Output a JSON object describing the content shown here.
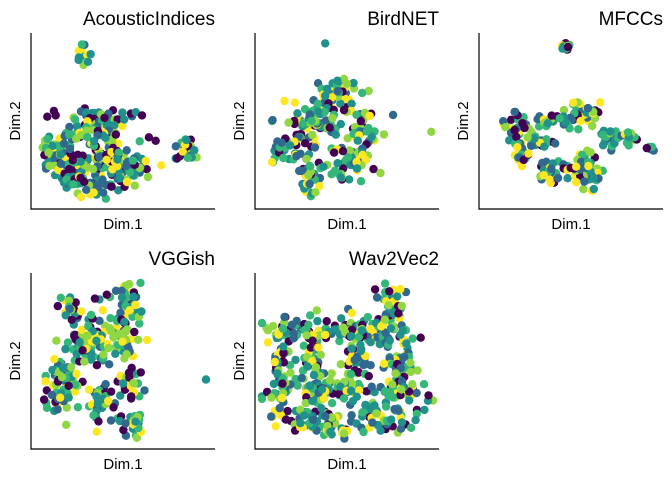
{
  "colors": {
    "palette": "viridis",
    "viridis": [
      "#440154",
      "#31688e",
      "#21918c",
      "#35b779",
      "#90d743",
      "#fde725"
    ]
  },
  "chart_data": [
    {
      "type": "scatter",
      "title": "AcousticIndices",
      "xlabel": "Dim.1",
      "ylabel": "Dim.2",
      "axis_ticks": false,
      "grid": false,
      "color_scale": "viridis",
      "clusters": [
        {
          "cx": 0.26,
          "cy": 0.9,
          "sx": 0.02,
          "sy": 0.03,
          "n": 12
        },
        {
          "cx": 0.35,
          "cy": 0.5,
          "sx": 0.09,
          "sy": 0.04,
          "n": 60
        },
        {
          "cx": 0.1,
          "cy": 0.3,
          "sx": 0.05,
          "sy": 0.05,
          "n": 45
        },
        {
          "cx": 0.33,
          "cy": 0.28,
          "sx": 0.13,
          "sy": 0.1,
          "n": 140
        },
        {
          "cx": 0.48,
          "cy": 0.22,
          "sx": 0.06,
          "sy": 0.07,
          "n": 40
        },
        {
          "cx": 0.2,
          "cy": 0.12,
          "sx": 0.06,
          "sy": 0.05,
          "n": 30
        },
        {
          "cx": 0.86,
          "cy": 0.32,
          "sx": 0.03,
          "sy": 0.05,
          "n": 25
        }
      ]
    },
    {
      "type": "scatter",
      "title": "BirdNET",
      "xlabel": "Dim.1",
      "ylabel": "Dim.2",
      "axis_ticks": false,
      "grid": false,
      "color_scale": "viridis",
      "clusters": [
        {
          "cx": 0.36,
          "cy": 0.95,
          "sx": 0.01,
          "sy": 0.01,
          "n": 1
        },
        {
          "cx": 0.45,
          "cy": 0.68,
          "sx": 0.07,
          "sy": 0.05,
          "n": 45
        },
        {
          "cx": 0.3,
          "cy": 0.48,
          "sx": 0.1,
          "sy": 0.08,
          "n": 80
        },
        {
          "cx": 0.58,
          "cy": 0.45,
          "sx": 0.06,
          "sy": 0.05,
          "n": 30
        },
        {
          "cx": 0.15,
          "cy": 0.3,
          "sx": 0.05,
          "sy": 0.04,
          "n": 25
        },
        {
          "cx": 0.5,
          "cy": 0.25,
          "sx": 0.08,
          "sy": 0.08,
          "n": 55
        },
        {
          "cx": 0.28,
          "cy": 0.15,
          "sx": 0.05,
          "sy": 0.06,
          "n": 30
        },
        {
          "cx": 0.99,
          "cy": 0.44,
          "sx": 0.01,
          "sy": 0.01,
          "n": 1
        }
      ]
    },
    {
      "type": "scatter",
      "title": "MFCCs",
      "xlabel": "Dim.1",
      "ylabel": "Dim.2",
      "axis_ticks": false,
      "grid": false,
      "color_scale": "viridis",
      "clusters": [
        {
          "cx": 0.47,
          "cy": 0.95,
          "sx": 0.015,
          "sy": 0.02,
          "n": 10
        },
        {
          "cx": 0.57,
          "cy": 0.55,
          "sx": 0.05,
          "sy": 0.05,
          "n": 40
        },
        {
          "cx": 0.38,
          "cy": 0.5,
          "sx": 0.05,
          "sy": 0.02,
          "n": 25
        },
        {
          "cx": 0.17,
          "cy": 0.45,
          "sx": 0.05,
          "sy": 0.04,
          "n": 30
        },
        {
          "cx": 0.3,
          "cy": 0.37,
          "sx": 0.06,
          "sy": 0.02,
          "n": 20
        },
        {
          "cx": 0.72,
          "cy": 0.4,
          "sx": 0.03,
          "sy": 0.03,
          "n": 15
        },
        {
          "cx": 0.83,
          "cy": 0.4,
          "sx": 0.03,
          "sy": 0.03,
          "n": 15
        },
        {
          "cx": 0.22,
          "cy": 0.28,
          "sx": 0.03,
          "sy": 0.03,
          "n": 15
        },
        {
          "cx": 0.4,
          "cy": 0.2,
          "sx": 0.05,
          "sy": 0.04,
          "n": 30
        },
        {
          "cx": 0.6,
          "cy": 0.18,
          "sx": 0.05,
          "sy": 0.06,
          "n": 45
        },
        {
          "cx": 0.95,
          "cy": 0.32,
          "sx": 0.015,
          "sy": 0.01,
          "n": 5
        }
      ]
    },
    {
      "type": "scatter",
      "title": "VGGish",
      "xlabel": "Dim.1",
      "ylabel": "Dim.2",
      "axis_ticks": false,
      "grid": false,
      "color_scale": "viridis",
      "clusters": [
        {
          "cx": 0.2,
          "cy": 0.82,
          "sx": 0.04,
          "sy": 0.05,
          "n": 25
        },
        {
          "cx": 0.5,
          "cy": 0.8,
          "sx": 0.06,
          "sy": 0.07,
          "n": 45
        },
        {
          "cx": 0.3,
          "cy": 0.6,
          "sx": 0.08,
          "sy": 0.08,
          "n": 70
        },
        {
          "cx": 0.5,
          "cy": 0.6,
          "sx": 0.05,
          "sy": 0.06,
          "n": 35
        },
        {
          "cx": 0.15,
          "cy": 0.35,
          "sx": 0.06,
          "sy": 0.1,
          "n": 70
        },
        {
          "cx": 0.38,
          "cy": 0.25,
          "sx": 0.04,
          "sy": 0.08,
          "n": 35
        },
        {
          "cx": 0.55,
          "cy": 0.35,
          "sx": 0.03,
          "sy": 0.08,
          "n": 25
        },
        {
          "cx": 0.55,
          "cy": 0.1,
          "sx": 0.04,
          "sy": 0.04,
          "n": 25
        },
        {
          "cx": 0.97,
          "cy": 0.38,
          "sx": 0.01,
          "sy": 0.01,
          "n": 1
        }
      ]
    },
    {
      "type": "scatter",
      "title": "Wav2Vec2",
      "xlabel": "Dim.1",
      "ylabel": "Dim.2",
      "axis_ticks": false,
      "grid": false,
      "color_scale": "viridis",
      "clusters": [
        {
          "cx": 0.2,
          "cy": 0.68,
          "sx": 0.09,
          "sy": 0.04,
          "n": 55
        },
        {
          "cx": 0.55,
          "cy": 0.68,
          "sx": 0.12,
          "sy": 0.04,
          "n": 70
        },
        {
          "cx": 0.75,
          "cy": 0.82,
          "sx": 0.04,
          "sy": 0.07,
          "n": 40
        },
        {
          "cx": 0.3,
          "cy": 0.5,
          "sx": 0.05,
          "sy": 0.1,
          "n": 50
        },
        {
          "cx": 0.55,
          "cy": 0.48,
          "sx": 0.05,
          "sy": 0.1,
          "n": 45
        },
        {
          "cx": 0.8,
          "cy": 0.5,
          "sx": 0.05,
          "sy": 0.1,
          "n": 50
        },
        {
          "cx": 0.35,
          "cy": 0.32,
          "sx": 0.15,
          "sy": 0.03,
          "n": 70
        },
        {
          "cx": 0.8,
          "cy": 0.32,
          "sx": 0.07,
          "sy": 0.05,
          "n": 40
        },
        {
          "cx": 0.3,
          "cy": 0.15,
          "sx": 0.12,
          "sy": 0.05,
          "n": 60
        },
        {
          "cx": 0.7,
          "cy": 0.15,
          "sx": 0.1,
          "sy": 0.05,
          "n": 50
        },
        {
          "cx": 0.1,
          "cy": 0.45,
          "sx": 0.03,
          "sy": 0.12,
          "n": 40
        },
        {
          "cx": 0.47,
          "cy": 0.05,
          "sx": 0.02,
          "sy": 0.02,
          "n": 6
        }
      ]
    }
  ]
}
